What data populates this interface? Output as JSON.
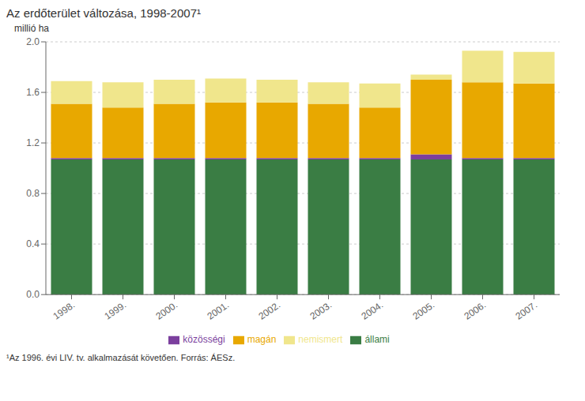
{
  "chart_data": {
    "type": "bar",
    "title": "Az erdőterület változása, 1998-2007¹",
    "ylabel": "millió ha",
    "annotations": [
      "¹Az 1996. évi LIV. tv. alkalmazását követően. Forrás: ÁESz."
    ],
    "categories": [
      "1998.",
      "1999.",
      "2000.",
      "2001.",
      "2002.",
      "2003.",
      "2004.",
      "2005.",
      "2006.",
      "2007."
    ],
    "series": [
      {
        "name": "állami",
        "color": "#3a7d44",
        "values": [
          1.07,
          1.07,
          1.07,
          1.07,
          1.07,
          1.07,
          1.07,
          1.07,
          1.07,
          1.07
        ]
      },
      {
        "name": "közösségi",
        "color": "#7b3f9e",
        "values": [
          0.01,
          0.01,
          0.01,
          0.01,
          0.01,
          0.01,
          0.01,
          0.04,
          0.01,
          0.01
        ]
      },
      {
        "name": "magán",
        "color": "#e8a800",
        "values": [
          0.43,
          0.4,
          0.43,
          0.44,
          0.44,
          0.43,
          0.4,
          0.59,
          0.6,
          0.59
        ]
      },
      {
        "name": "nemismert",
        "color": "#f0e68c",
        "values": [
          0.18,
          0.2,
          0.19,
          0.19,
          0.18,
          0.17,
          0.19,
          0.04,
          0.25,
          0.25
        ]
      }
    ],
    "stacked": true,
    "ylim": [
      0,
      2
    ],
    "yticks": [
      {
        "value": 0,
        "label": "0.0"
      },
      0.4,
      0.8,
      1.2,
      1.6,
      {
        "value": 2,
        "label": "2.0"
      }
    ],
    "grid": true,
    "legend": "bottom"
  }
}
